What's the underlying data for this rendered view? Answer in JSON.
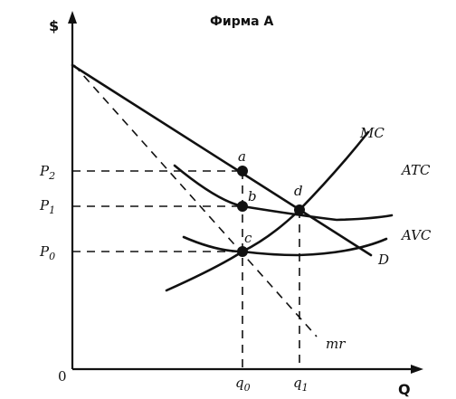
{
  "title": "Фирма А",
  "axes": {
    "y_label": "$",
    "x_label": "Q",
    "origin": "0"
  },
  "price_labels": {
    "p2": {
      "base": "P",
      "sub": "2"
    },
    "p1": {
      "base": "P",
      "sub": "1"
    },
    "p0": {
      "base": "P",
      "sub": "0"
    }
  },
  "quantity_labels": {
    "q0": {
      "base": "q",
      "sub": "0"
    },
    "q1": {
      "base": "q",
      "sub": "1"
    }
  },
  "curve_labels": {
    "mc": "MC",
    "atc": "ATC",
    "avc": "AVC",
    "demand": "D",
    "mr": "mr"
  },
  "point_labels": {
    "a": "a",
    "b": "b",
    "c": "c",
    "d": "d"
  },
  "colors": {
    "ink": "#111111",
    "background": "#ffffff"
  }
}
